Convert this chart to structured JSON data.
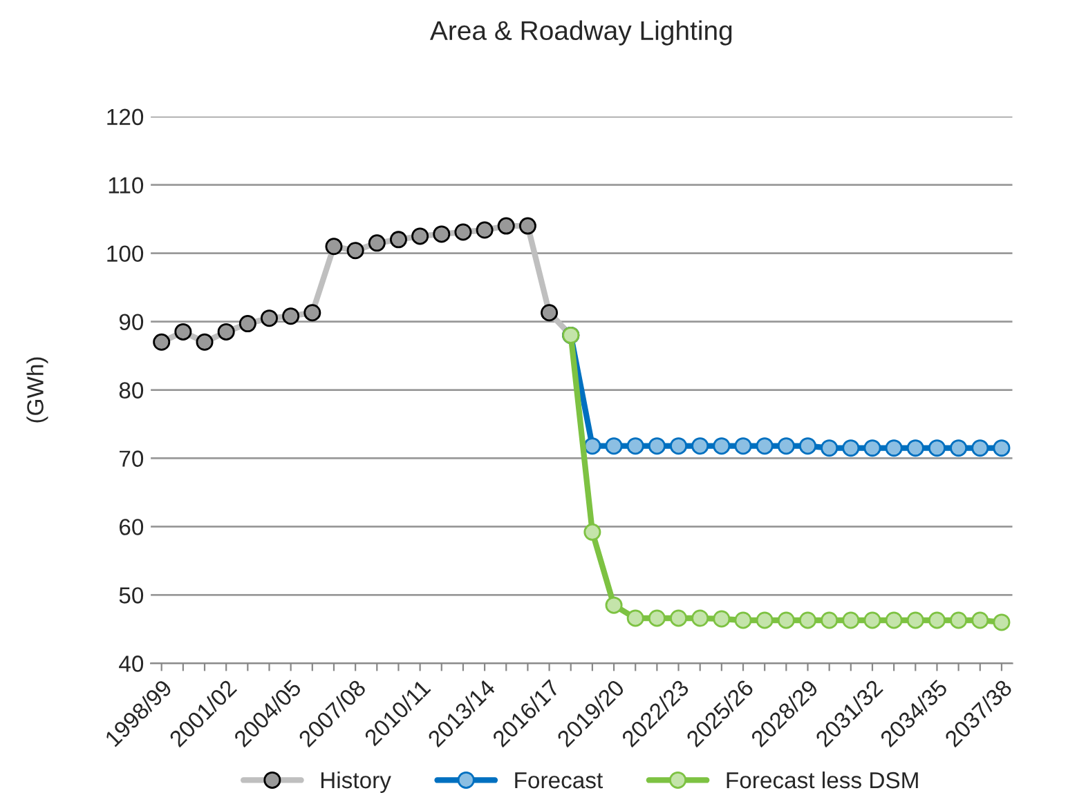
{
  "chart_data": {
    "type": "line",
    "title": "Area & Roadway Lighting",
    "ylabel": "(GWh)",
    "categories": [
      "1998/99",
      null,
      null,
      "2001/02",
      null,
      null,
      "2004/05",
      null,
      null,
      "2007/08",
      null,
      null,
      "2010/11",
      null,
      null,
      "2013/14",
      null,
      null,
      "2016/17",
      null,
      null,
      "2019/20",
      null,
      null,
      "2022/23",
      null,
      null,
      "2025/26",
      null,
      null,
      "2028/29",
      null,
      null,
      "2031/32",
      null,
      null,
      "2034/35",
      null,
      null,
      "2037/38"
    ],
    "series": [
      {
        "name": "History",
        "color": "#bfbfbf",
        "values": [
          87,
          88.5,
          87,
          88.5,
          89.7,
          90.5,
          90.8,
          91.3,
          101,
          100.4,
          101.5,
          102,
          102.5,
          102.8,
          103.1,
          103.4,
          104,
          104,
          91.3,
          88,
          null,
          null,
          null,
          null,
          null,
          null,
          null,
          null,
          null,
          null,
          null,
          null,
          null,
          null,
          null,
          null,
          null,
          null,
          null,
          null
        ]
      },
      {
        "name": "Forecast",
        "color": "#0070c0",
        "values": [
          null,
          null,
          null,
          null,
          null,
          null,
          null,
          null,
          null,
          null,
          null,
          null,
          null,
          null,
          null,
          null,
          null,
          null,
          null,
          88,
          71.8,
          71.8,
          71.8,
          71.8,
          71.8,
          71.8,
          71.8,
          71.8,
          71.8,
          71.8,
          71.8,
          71.5,
          71.5,
          71.5,
          71.5,
          71.5,
          71.5,
          71.5,
          71.5,
          71.5
        ]
      },
      {
        "name": "Forecast less DSM",
        "color": "#7dc242",
        "values": [
          null,
          null,
          null,
          null,
          null,
          null,
          null,
          null,
          null,
          null,
          null,
          null,
          null,
          null,
          null,
          null,
          null,
          null,
          null,
          88,
          59.2,
          48.5,
          46.6,
          46.6,
          46.6,
          46.6,
          46.5,
          46.3,
          46.3,
          46.3,
          46.3,
          46.3,
          46.3,
          46.3,
          46.3,
          46.3,
          46.3,
          46.3,
          46.3,
          46.0
        ]
      }
    ],
    "ylim": [
      40,
      120
    ],
    "yticks": [
      40,
      50,
      60,
      70,
      80,
      90,
      100,
      110,
      120
    ],
    "grid": "y",
    "legend": "bottom",
    "marker": "circle",
    "line_style": "solid"
  }
}
